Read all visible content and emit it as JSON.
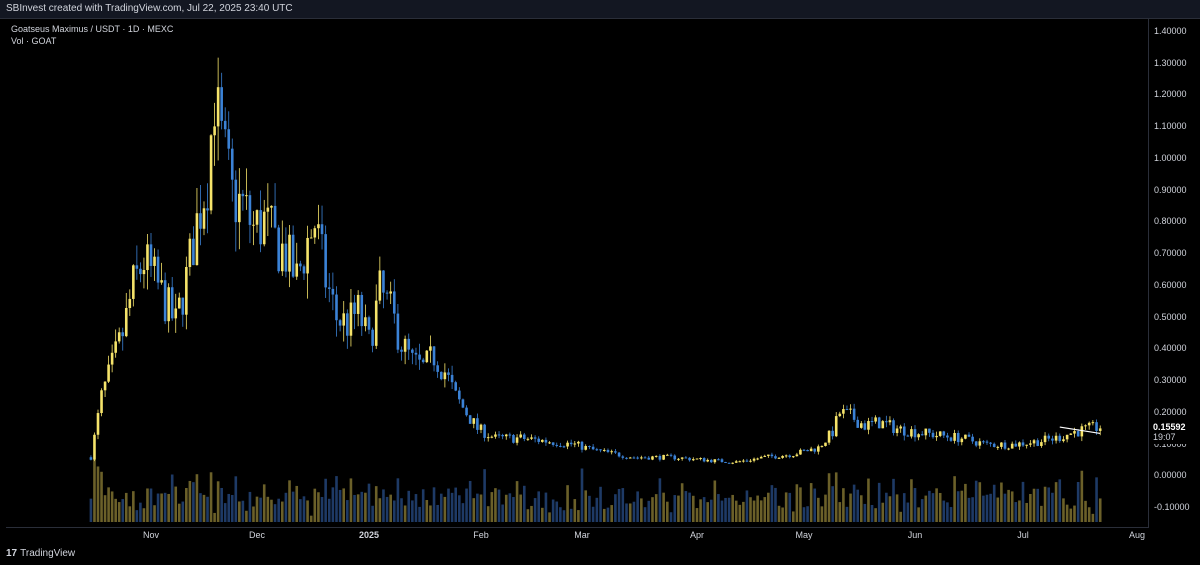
{
  "header": {
    "attribution": "SBInvest created with TradingView.com, Jul 22, 2025 23:40 UTC"
  },
  "legend": {
    "symbol_line": "Goatseus Maximus / USDT · 1D · MEXC",
    "volume_line": "Vol · GOAT"
  },
  "price_tag": {
    "price": "0.15592",
    "countdown": "19:07"
  },
  "footer": {
    "brand": "TradingView",
    "logo_glyph": "17"
  },
  "colors": {
    "background": "#000000",
    "up_candle": "#f5e36a",
    "down_candle": "#3b82d6",
    "volume_up": "#6b6029",
    "volume_down": "#1e3a66",
    "trendline": "#ffffff"
  },
  "chart_data": {
    "type": "candlestick",
    "title": "Goatseus Maximus / USDT · 1D · MEXC",
    "ylim": [
      -0.14,
      1.44
    ],
    "y_ticks": [
      "1.40000",
      "1.30000",
      "1.20000",
      "1.10000",
      "1.00000",
      "0.90000",
      "0.80000",
      "0.70000",
      "0.60000",
      "0.50000",
      "0.40000",
      "0.30000",
      "0.20000",
      "0.10000",
      "0.00000",
      "-0.10000"
    ],
    "x_ticks": [
      {
        "label": "Nov",
        "bold": false
      },
      {
        "label": "Dec",
        "bold": false
      },
      {
        "label": "2025",
        "bold": true
      },
      {
        "label": "Feb",
        "bold": false
      },
      {
        "label": "Mar",
        "bold": false
      },
      {
        "label": "Apr",
        "bold": false
      },
      {
        "label": "May",
        "bold": false
      },
      {
        "label": "Jun",
        "bold": false
      },
      {
        "label": "Jul",
        "bold": false
      },
      {
        "label": "Aug",
        "bold": false
      }
    ],
    "x_tick_dates": [
      "2024-11-01",
      "2024-12-01",
      "2025-01-01",
      "2025-02-01",
      "2025-03-01",
      "2025-04-01",
      "2025-05-01",
      "2025-06-01",
      "2025-07-01",
      "2025-08-01"
    ],
    "price_path": [
      [
        "2024-10-15",
        0.06
      ],
      [
        "2024-10-18",
        0.25
      ],
      [
        "2024-10-21",
        0.35
      ],
      [
        "2024-10-24",
        0.45
      ],
      [
        "2024-10-27",
        0.6
      ],
      [
        "2024-10-30",
        0.68
      ],
      [
        "2024-11-02",
        0.62
      ],
      [
        "2024-11-05",
        0.55
      ],
      [
        "2024-11-08",
        0.48
      ],
      [
        "2024-11-11",
        0.62
      ],
      [
        "2024-11-14",
        0.8
      ],
      [
        "2024-11-17",
        0.95
      ],
      [
        "2024-11-19",
        1.2
      ],
      [
        "2024-11-21",
        1.05
      ],
      [
        "2024-11-24",
        0.88
      ],
      [
        "2024-11-27",
        0.85
      ],
      [
        "2024-11-30",
        0.78
      ],
      [
        "2024-12-03",
        0.8
      ],
      [
        "2024-12-06",
        0.74
      ],
      [
        "2024-12-09",
        0.7
      ],
      [
        "2024-12-12",
        0.62
      ],
      [
        "2024-12-15",
        0.74
      ],
      [
        "2024-12-17",
        0.8
      ],
      [
        "2024-12-20",
        0.62
      ],
      [
        "2024-12-23",
        0.5
      ],
      [
        "2024-12-26",
        0.48
      ],
      [
        "2024-12-29",
        0.52
      ],
      [
        "2025-01-01",
        0.42
      ],
      [
        "2025-01-04",
        0.58
      ],
      [
        "2025-01-07",
        0.52
      ],
      [
        "2025-01-10",
        0.42
      ],
      [
        "2025-01-13",
        0.36
      ],
      [
        "2025-01-16",
        0.34
      ],
      [
        "2025-01-19",
        0.38
      ],
      [
        "2025-01-22",
        0.33
      ],
      [
        "2025-01-25",
        0.25
      ],
      [
        "2025-01-28",
        0.2
      ],
      [
        "2025-01-31",
        0.15
      ],
      [
        "2025-02-05",
        0.12
      ],
      [
        "2025-02-12",
        0.12
      ],
      [
        "2025-02-20",
        0.11
      ],
      [
        "2025-02-27",
        0.1
      ],
      [
        "2025-03-05",
        0.08
      ],
      [
        "2025-03-15",
        0.06
      ],
      [
        "2025-03-25",
        0.06
      ],
      [
        "2025-04-05",
        0.05
      ],
      [
        "2025-04-12",
        0.045
      ],
      [
        "2025-04-20",
        0.06
      ],
      [
        "2025-04-28",
        0.07
      ],
      [
        "2025-05-05",
        0.09
      ],
      [
        "2025-05-09",
        0.14
      ],
      [
        "2025-05-11",
        0.2
      ],
      [
        "2025-05-14",
        0.19
      ],
      [
        "2025-05-18",
        0.16
      ],
      [
        "2025-05-22",
        0.17
      ],
      [
        "2025-05-27",
        0.15
      ],
      [
        "2025-06-01",
        0.14
      ],
      [
        "2025-06-07",
        0.13
      ],
      [
        "2025-06-14",
        0.12
      ],
      [
        "2025-06-21",
        0.1
      ],
      [
        "2025-06-28",
        0.1
      ],
      [
        "2025-07-05",
        0.11
      ],
      [
        "2025-07-10",
        0.12
      ],
      [
        "2025-07-15",
        0.14
      ],
      [
        "2025-07-22",
        0.156
      ]
    ],
    "trendline": {
      "from": [
        "2025-07-11",
        0.155
      ],
      "to": [
        "2025-07-22",
        0.135
      ]
    },
    "last_price": 0.15592
  }
}
